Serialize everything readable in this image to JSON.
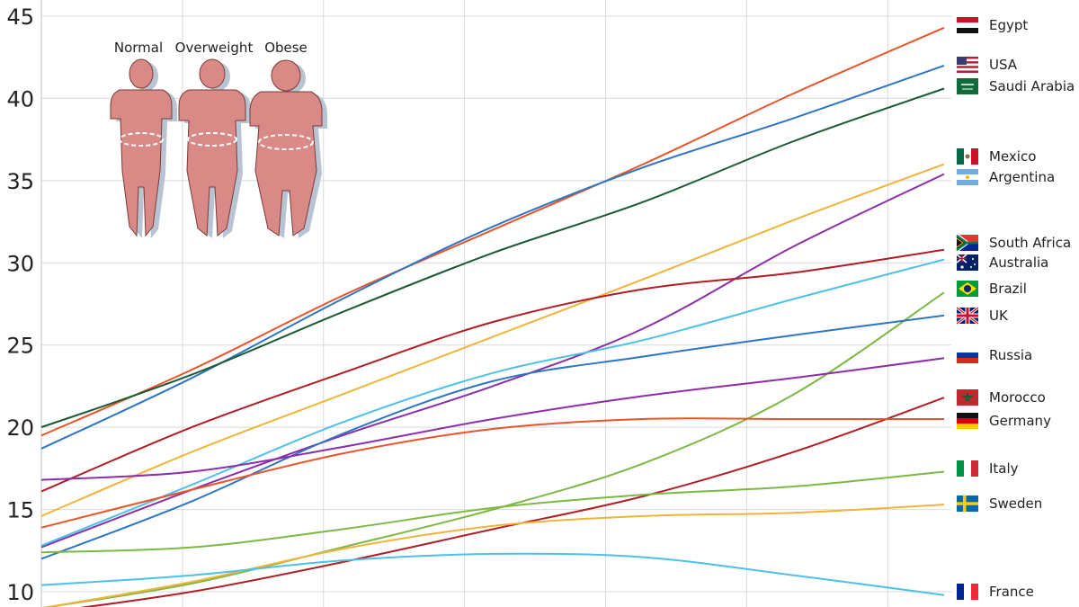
{
  "chart_data": {
    "type": "line",
    "title": "",
    "xlabel": "",
    "ylabel": "",
    "ylim": [
      10,
      45
    ],
    "yticks": [
      "10",
      "15",
      "20",
      "25",
      "30",
      "35",
      "40",
      "45"
    ],
    "grid": true,
    "x": [
      0,
      1,
      2,
      3,
      4,
      5,
      6
    ],
    "legend_placement": "right",
    "series": [
      {
        "name": "Egypt",
        "color": "#e8552a",
        "flag": "egypt-flag",
        "values": [
          19.5,
          23.5,
          28.0,
          32.0,
          36.0,
          40.3,
          44.3
        ]
      },
      {
        "name": "USA",
        "color": "#2e75c4",
        "flag": "usa-flag",
        "values": [
          18.7,
          23.0,
          27.8,
          32.2,
          35.8,
          38.8,
          42.0
        ]
      },
      {
        "name": "Saudi Arabia",
        "color": "#1c5a34",
        "flag": "saudi-arabia-flag",
        "values": [
          20.0,
          23.2,
          27.0,
          30.6,
          33.7,
          37.4,
          40.6
        ]
      },
      {
        "name": "Mexico",
        "color": "#f0b43a",
        "flag": "mexico-flag",
        "values": [
          14.6,
          18.5,
          22.0,
          25.5,
          29.0,
          32.6,
          36.0
        ]
      },
      {
        "name": "Argentina",
        "color": "#8b2fa8",
        "flag": "argentina-flag",
        "values": [
          12.7,
          16.2,
          19.5,
          22.5,
          26.0,
          31.0,
          35.4
        ]
      },
      {
        "name": "South Africa",
        "color": "#b01e28",
        "flag": "south-africa-flag",
        "values": [
          16.1,
          20.0,
          23.3,
          26.4,
          28.4,
          29.4,
          30.8
        ]
      },
      {
        "name": "Australia",
        "color": "#4fc0e8",
        "flag": "australia-flag",
        "values": [
          12.8,
          16.5,
          20.3,
          23.3,
          25.3,
          27.8,
          30.2
        ]
      },
      {
        "name": "Brazil",
        "color": "#7db843",
        "flag": "brazil-flag",
        "values": [
          9.0,
          10.5,
          12.7,
          15.0,
          17.8,
          22.0,
          28.2
        ]
      },
      {
        "name": "UK",
        "color": "#2e75c4",
        "flag": "uk-flag",
        "values": [
          12.0,
          15.5,
          19.6,
          22.8,
          24.3,
          25.6,
          26.8
        ]
      },
      {
        "name": "Russia",
        "color": "#8b2fa8",
        "flag": "russia-flag",
        "values": [
          16.8,
          17.3,
          18.8,
          20.5,
          21.9,
          23.0,
          24.2
        ]
      },
      {
        "name": "Morocco",
        "color": "#b01e28",
        "flag": "morocco-flag",
        "values": [
          8.7,
          10.0,
          11.8,
          13.8,
          15.8,
          18.5,
          21.8
        ]
      },
      {
        "name": "Germany",
        "color": "#e8552a",
        "flag": "germany-flag",
        "values": [
          13.9,
          16.2,
          18.4,
          19.9,
          20.5,
          20.5,
          20.5
        ]
      },
      {
        "name": "Italy",
        "color": "#7db843",
        "flag": "italy-flag",
        "values": [
          12.4,
          12.7,
          13.8,
          15.1,
          15.9,
          16.4,
          17.3
        ]
      },
      {
        "name": "Sweden",
        "color": "#f0b43a",
        "flag": "sweden-flag",
        "values": [
          9.0,
          10.6,
          12.6,
          14.0,
          14.6,
          14.8,
          15.3
        ]
      },
      {
        "name": "France",
        "color": "#4fc0e8",
        "flag": "france-flag",
        "values": [
          10.4,
          11.0,
          11.9,
          12.3,
          12.1,
          11.0,
          9.8
        ]
      }
    ],
    "figure_labels": [
      "Normal",
      "Overweight",
      "Obese"
    ]
  }
}
